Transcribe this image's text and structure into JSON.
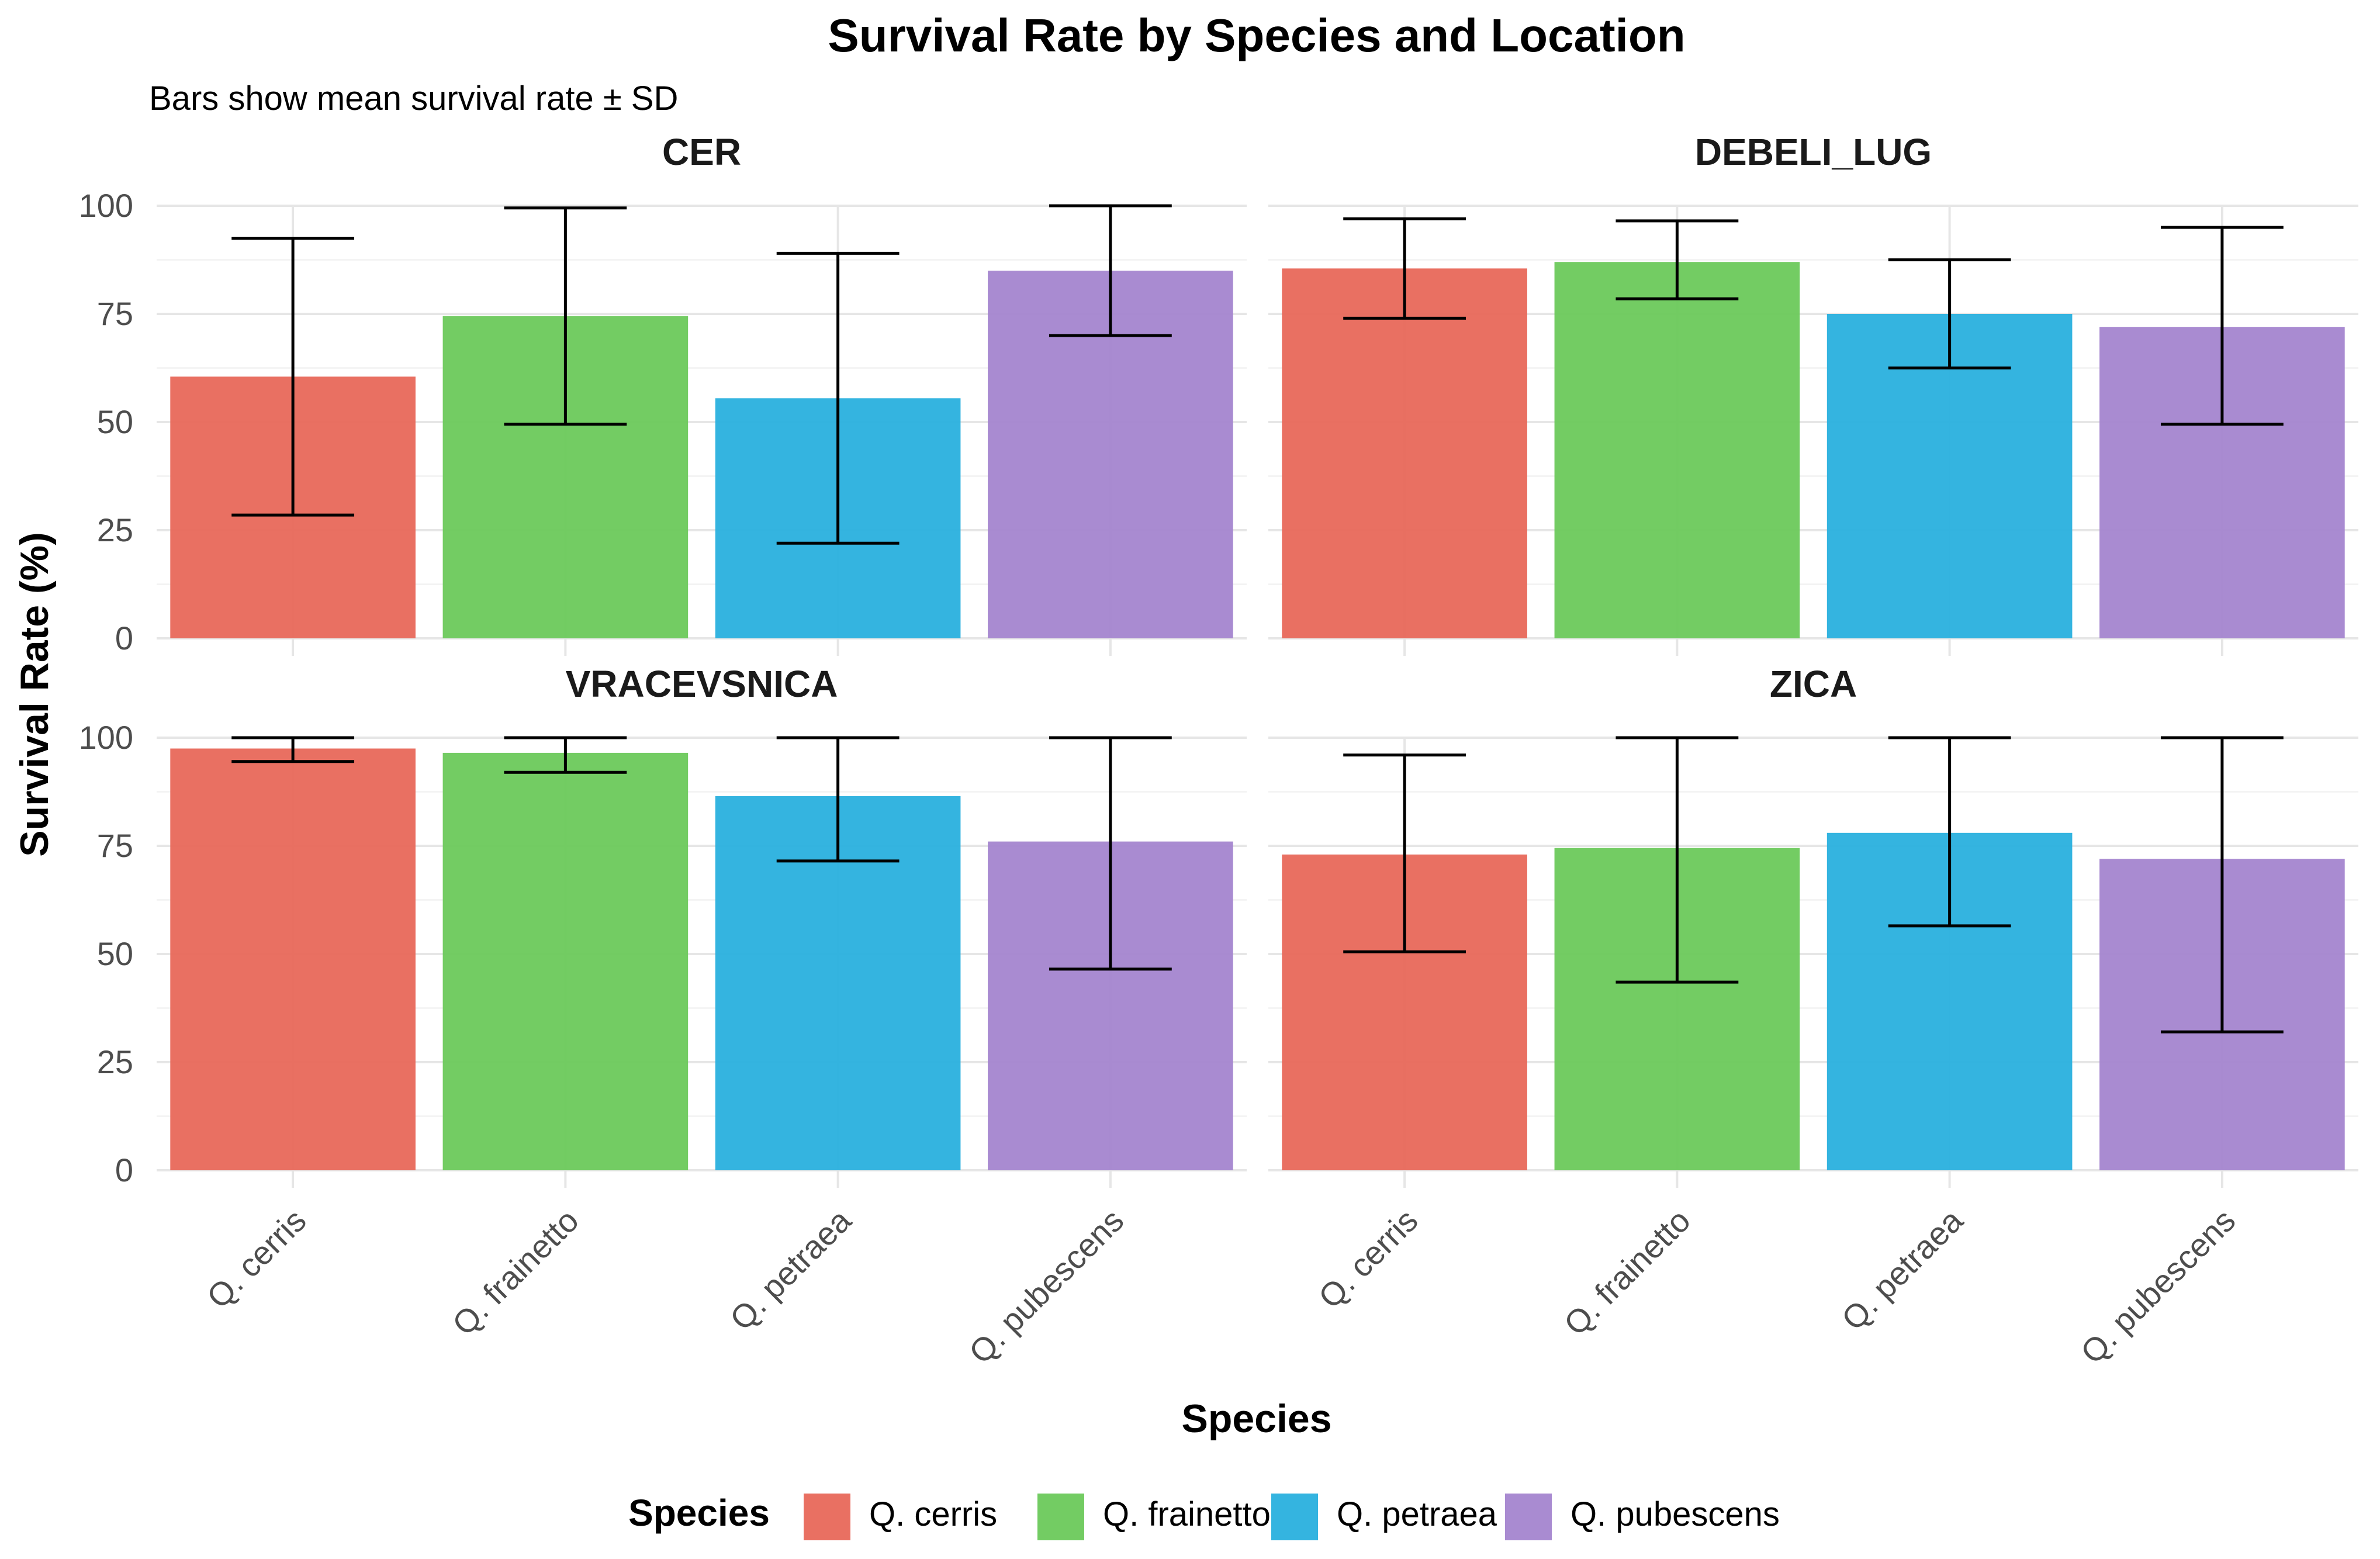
{
  "chart_data": {
    "type": "bar",
    "title": "Survival Rate by Species and Location",
    "subtitle": "Bars show mean survival rate ± SD",
    "xlabel": "Species",
    "ylabel": "Survival Rate (%)",
    "ylim": [
      0,
      100
    ],
    "yticks": [
      0,
      25,
      50,
      75,
      100
    ],
    "grid": true,
    "legend_position": "bottom",
    "legend": {
      "title": "Species",
      "entries": [
        "Q. cerris",
        "Q. frainetto",
        "Q. petraea",
        "Q. pubescens"
      ]
    },
    "categories": [
      "Q. cerris",
      "Q. frainetto",
      "Q. petraea",
      "Q. pubescens"
    ],
    "colors": [
      "#E8685A",
      "#6CC95B",
      "#29B0DE",
      "#A485CF"
    ],
    "facets": [
      {
        "name": "CER",
        "values": [
          60.5,
          74.5,
          55.5,
          85
        ],
        "error_low": [
          28.5,
          49.5,
          22,
          70
        ],
        "error_high": [
          92.5,
          99.5,
          89,
          100
        ]
      },
      {
        "name": "DEBELI_LUG",
        "values": [
          85.5,
          87,
          75,
          72
        ],
        "error_low": [
          74,
          78.5,
          62.5,
          49.5
        ],
        "error_high": [
          97,
          96.5,
          87.5,
          95
        ]
      },
      {
        "name": "VRACEVSNICA",
        "values": [
          97.5,
          96.5,
          86.5,
          76
        ],
        "error_low": [
          94.5,
          92,
          71.5,
          46.5
        ],
        "error_high": [
          100,
          100,
          100,
          100
        ]
      },
      {
        "name": "ZICA",
        "values": [
          73,
          74.5,
          78,
          72
        ],
        "error_low": [
          50.5,
          43.5,
          56.5,
          32
        ],
        "error_high": [
          96,
          100,
          100,
          100
        ]
      }
    ]
  }
}
